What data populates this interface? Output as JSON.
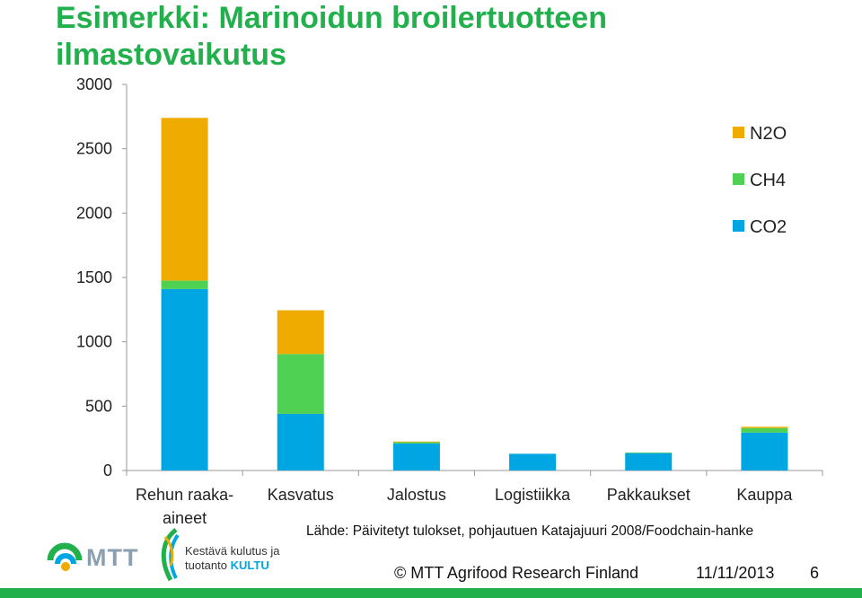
{
  "slide": {
    "title_line1": "Esimerkki: Marinoidun broilertuotteen",
    "title_line2": "ilmastovaikutus",
    "source": "Lähde: Päivitetyt tulokset, pohjautuen Katajajuuri 2008/Foodchain-hanke",
    "copyright": "© MTT Agrifood Research Finland",
    "date": "11/11/2013",
    "page_number": "6",
    "logo_mtt_text": "MTT",
    "logo_kultu_line1": "Kestävä kulutus ja",
    "logo_kultu_line2": "tuotanto",
    "logo_kultu_brand": "KULTU",
    "title_color": "#22b04c"
  },
  "chart_data": {
    "type": "bar",
    "stacked": true,
    "categories": [
      [
        "Rehun raaka-",
        "aineet"
      ],
      [
        "Kasvatus"
      ],
      [
        "Jalostus"
      ],
      [
        "Logistiikka"
      ],
      [
        "Pakkaukset"
      ],
      [
        "Kauppa"
      ]
    ],
    "series": [
      {
        "name": "CO2",
        "color": "#00a6e2",
        "values": [
          1410,
          440,
          210,
          130,
          135,
          295
        ]
      },
      {
        "name": "CH4",
        "color": "#4fd154",
        "values": [
          65,
          465,
          10,
          0,
          5,
          35
        ]
      },
      {
        "name": "N2O",
        "color": "#f0ab00",
        "values": [
          1265,
          340,
          5,
          0,
          0,
          10
        ]
      }
    ],
    "ylim": [
      0,
      3000
    ],
    "yticks": [
      0,
      500,
      1000,
      1500,
      2000,
      2500,
      3000
    ],
    "legend_order": [
      "N2O",
      "CH4",
      "CO2"
    ],
    "legend_position": "top-right",
    "grid": false
  }
}
